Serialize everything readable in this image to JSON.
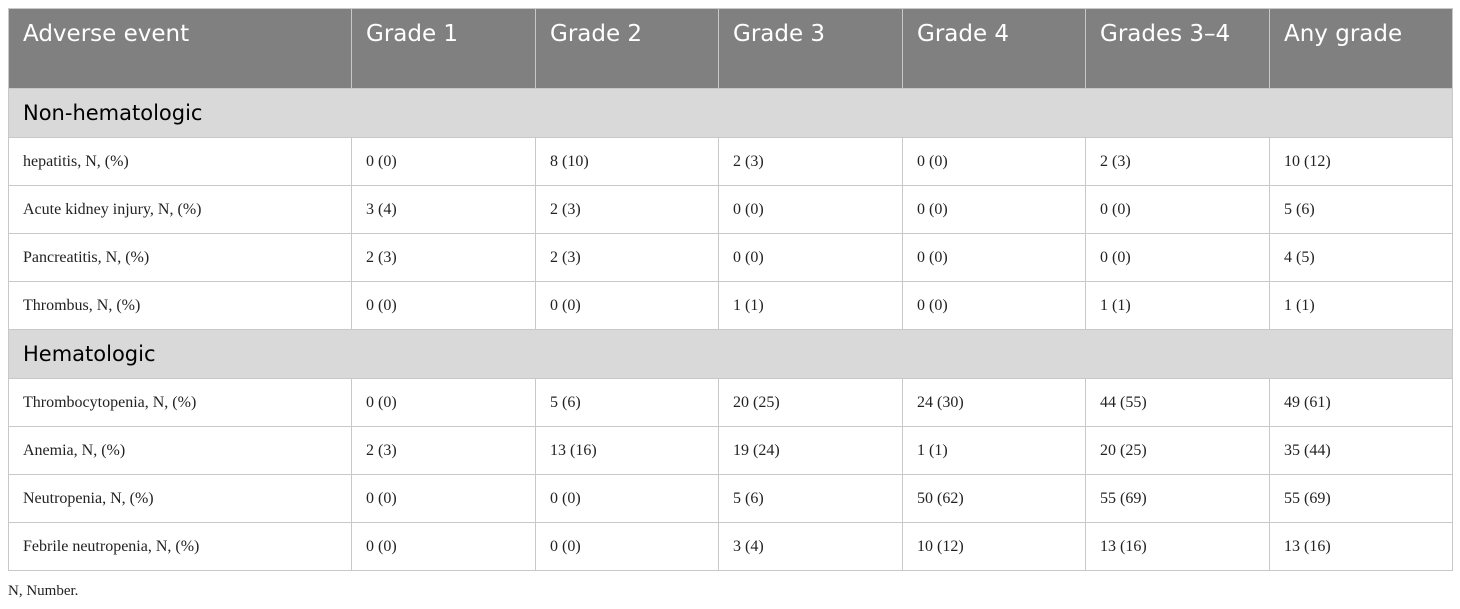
{
  "table": {
    "columns": [
      "Adverse event",
      "Grade 1",
      "Grade 2",
      "Grade 3",
      "Grade 4",
      "Grades 3–4",
      "Any grade"
    ],
    "sections": [
      {
        "title": "Non-hematologic",
        "rows": [
          [
            "hepatitis, N, (%)",
            "0 (0)",
            "8 (10)",
            "2 (3)",
            "0 (0)",
            "2 (3)",
            "10 (12)"
          ],
          [
            "Acute kidney injury, N, (%)",
            "3 (4)",
            "2 (3)",
            "0 (0)",
            "0 (0)",
            "0 (0)",
            "5 (6)"
          ],
          [
            "Pancreatitis, N, (%)",
            "2 (3)",
            "2 (3)",
            "0 (0)",
            "0 (0)",
            "0 (0)",
            "4 (5)"
          ],
          [
            "Thrombus, N, (%)",
            "0 (0)",
            "0 (0)",
            "1 (1)",
            "0 (0)",
            "1 (1)",
            "1 (1)"
          ]
        ]
      },
      {
        "title": "Hematologic",
        "rows": [
          [
            "Thrombocytopenia, N, (%)",
            "0 (0)",
            "5 (6)",
            "20 (25)",
            "24 (30)",
            "44 (55)",
            "49 (61)"
          ],
          [
            "Anemia, N, (%)",
            "2 (3)",
            "13 (16)",
            "19 (24)",
            "1 (1)",
            "20 (25)",
            "35 (44)"
          ],
          [
            "Neutropenia, N, (%)",
            "0 (0)",
            "0 (0)",
            "5 (6)",
            "50 (62)",
            "55 (69)",
            "55 (69)"
          ],
          [
            "Febrile neutropenia, N, (%)",
            "0 (0)",
            "0 (0)",
            "3 (4)",
            "10 (12)",
            "13 (16)",
            "13 (16)"
          ]
        ]
      }
    ]
  },
  "footnote": "N, Number."
}
